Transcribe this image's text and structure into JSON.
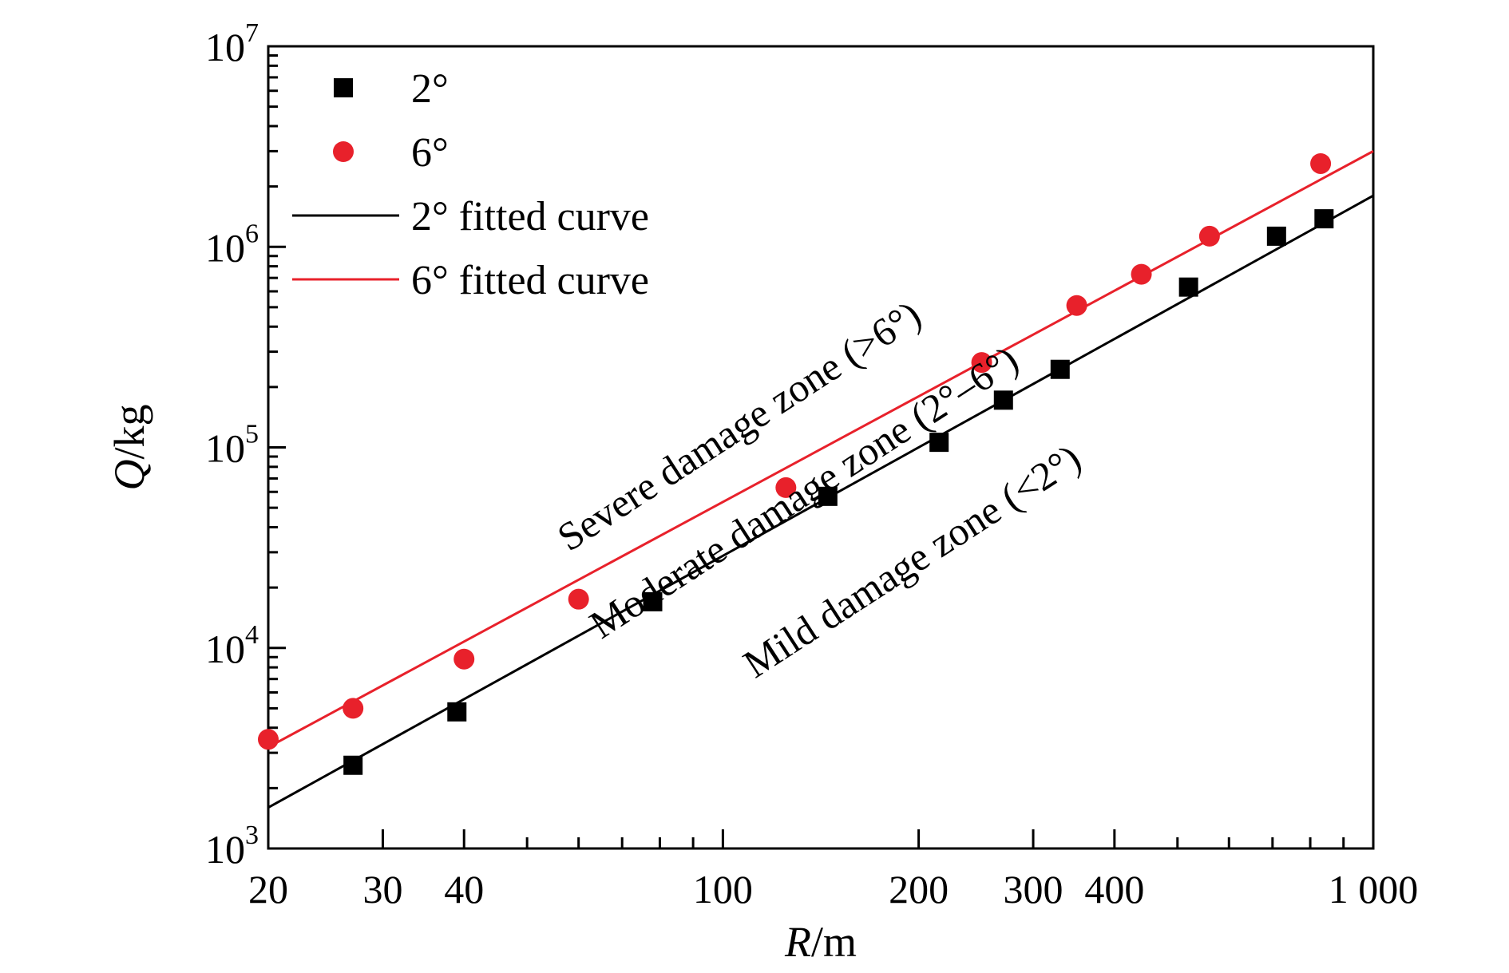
{
  "chart_data": {
    "type": "scatter",
    "xscale": "log",
    "yscale": "log",
    "xlim": [
      20,
      1000
    ],
    "ylim": [
      1000,
      10000000
    ],
    "xlabel": {
      "italic": "R",
      "rest": "/m"
    },
    "ylabel": {
      "italic": "Q",
      "rest": "/kg"
    },
    "xticks": [
      {
        "value": 20,
        "label": "20"
      },
      {
        "value": 30,
        "label": "30"
      },
      {
        "value": 40,
        "label": "40"
      },
      {
        "value": 100,
        "label": "100"
      },
      {
        "value": 200,
        "label": "200"
      },
      {
        "value": 300,
        "label": "300"
      },
      {
        "value": 400,
        "label": "400"
      },
      {
        "value": 1000,
        "label": "1 000"
      }
    ],
    "yticks": [
      {
        "value": 1000,
        "base": "10",
        "exp": "3"
      },
      {
        "value": 10000,
        "base": "10",
        "exp": "4"
      },
      {
        "value": 100000,
        "base": "10",
        "exp": "5"
      },
      {
        "value": 1000000,
        "base": "10",
        "exp": "6"
      },
      {
        "value": 10000000,
        "base": "10",
        "exp": "7"
      }
    ],
    "legend_position": "top-left",
    "series": [
      {
        "name": "2°",
        "marker": "square",
        "color": "#000000",
        "points": [
          [
            27,
            2600
          ],
          [
            39,
            4800
          ],
          [
            78,
            17000
          ],
          [
            145,
            57000
          ],
          [
            215,
            106000
          ],
          [
            270,
            172000
          ],
          [
            330,
            245000
          ],
          [
            520,
            630000
          ],
          [
            710,
            1130000
          ],
          [
            840,
            1380000
          ]
        ]
      },
      {
        "name": "6°",
        "marker": "circle",
        "color": "#e8212b",
        "points": [
          [
            20,
            3500
          ],
          [
            27,
            5000
          ],
          [
            40,
            8800
          ],
          [
            60,
            17500
          ],
          [
            125,
            63000
          ],
          [
            250,
            265000
          ],
          [
            350,
            510000
          ],
          [
            440,
            730000
          ],
          [
            560,
            1130000
          ],
          [
            830,
            2600000
          ]
        ]
      },
      {
        "name": "2° fitted curve",
        "type": "line",
        "color": "#000000",
        "points": [
          [
            20,
            1600
          ],
          [
            1000,
            1800000
          ]
        ]
      },
      {
        "name": "6° fitted curve",
        "type": "line",
        "color": "#e8212b",
        "points": [
          [
            20,
            3200
          ],
          [
            1000,
            3000000
          ]
        ]
      }
    ],
    "annotations": [
      {
        "text": "Severe damage zone (>6°)",
        "x": 58,
        "y": 30000,
        "angle_deg": -33
      },
      {
        "text": "Moderate damage zone (2°–6°)",
        "x": 65,
        "y": 11000,
        "angle_deg": -33
      },
      {
        "text": "Mild damage zone (<2°)",
        "x": 112,
        "y": 7000,
        "angle_deg": -33
      }
    ]
  }
}
